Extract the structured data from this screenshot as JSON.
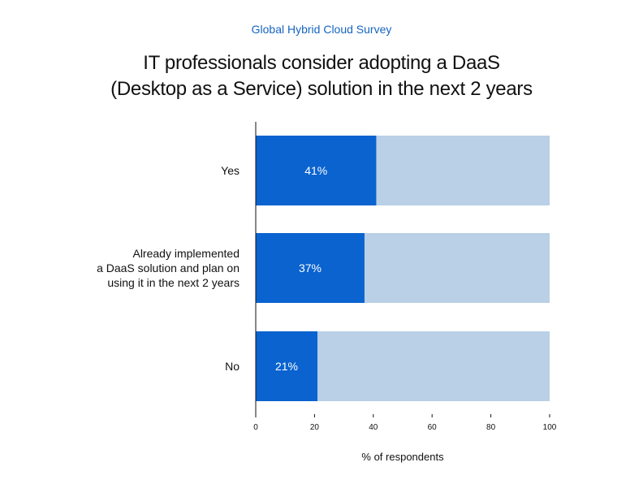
{
  "header": {
    "subtitle": "Global Hybrid Cloud Survey",
    "title_lines": [
      "IT professionals consider adopting a DaaS",
      "(Desktop as a Service) solution in the next 2 years"
    ]
  },
  "chart_data": {
    "type": "bar",
    "orientation": "horizontal",
    "stacked_to_100": true,
    "subtitle": "Global Hybrid Cloud Survey",
    "title": "IT professionals consider adopting a DaaS (Desktop as a Service) solution in the next 2 years",
    "categories": [
      [
        "Yes"
      ],
      [
        "Already implemented",
        "a DaaS solution and plan on",
        "using it in the next 2 years"
      ],
      [
        "No"
      ]
    ],
    "values": [
      41,
      37,
      21
    ],
    "value_labels": [
      "41%",
      "37%",
      "21%"
    ],
    "xlabel": "% of respondents",
    "ylabel": "",
    "xlim": [
      0,
      100
    ],
    "xticks": [
      0,
      20,
      40,
      60,
      80,
      100
    ],
    "grid": false,
    "colors": {
      "value": "#0a63cf",
      "remainder": "#b9d0e6",
      "subtitle": "#1565c0"
    }
  }
}
